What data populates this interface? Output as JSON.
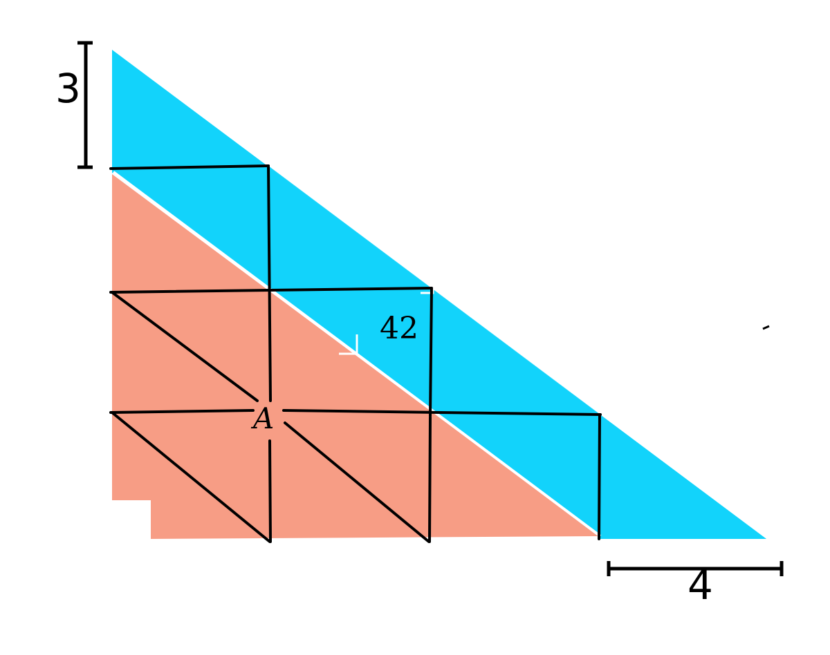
{
  "diagram": {
    "labels": {
      "left_dimension": "3",
      "bottom_dimension": "4",
      "area_value": "42",
      "point_label": "A"
    },
    "colors": {
      "blue_region": "#12d3fb",
      "salmon_region": "#f79d85",
      "grid_lines": "#000000",
      "background": "#ffffff"
    }
  }
}
